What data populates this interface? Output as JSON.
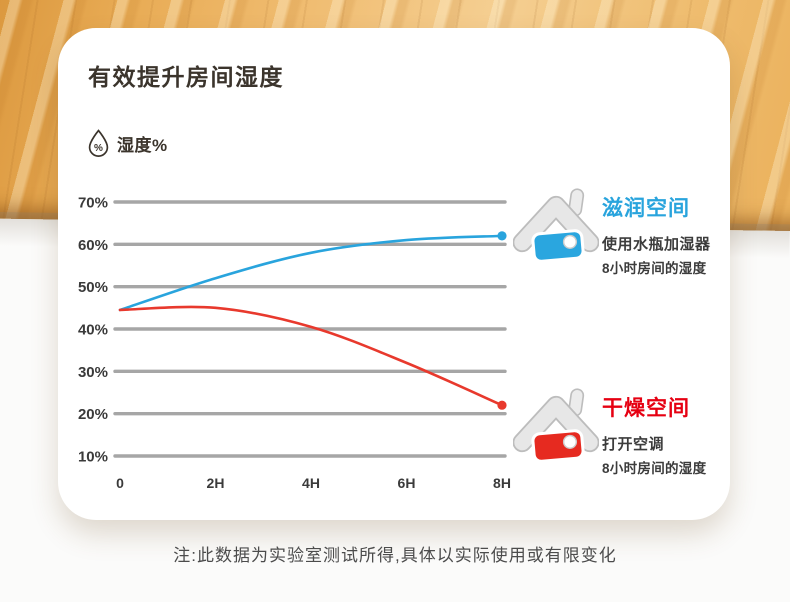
{
  "page": {
    "title": "有效提升房间湿度",
    "unit_label": "湿度%",
    "unit_icon": "water-drop-percent-icon",
    "footnote": "注:此数据为实验室测试所得,具体以实际使用或有限变化"
  },
  "chart_data": {
    "type": "line",
    "title": "有效提升房间湿度",
    "ylabel": "湿度%",
    "xlabel": "",
    "x_labels": [
      "0",
      "2H",
      "4H",
      "6H",
      "8H"
    ],
    "y_labels": [
      "70%",
      "60%",
      "50%",
      "40%",
      "30%",
      "20%",
      "10%"
    ],
    "y_min": 10,
    "y_max": 70,
    "grid": true,
    "legend_position": "right",
    "series": [
      {
        "name": "滋润空间",
        "color": "#29a4dd",
        "values": [
          44.5,
          52,
          58,
          61,
          62
        ],
        "endpoint_dot": true
      },
      {
        "name": "干燥空间",
        "color": "#e8392d",
        "values": [
          44.5,
          45,
          40.5,
          32,
          22
        ],
        "endpoint_dot": true
      }
    ]
  },
  "legend": [
    {
      "icon": "house-icon",
      "title": "滋润空间",
      "title_color": "#29a4dd",
      "house_color": "#2aa6df",
      "desc_line1": "使用水瓶加湿器",
      "desc_line2": "8小时房间的湿度"
    },
    {
      "icon": "house-icon",
      "title": "干燥空间",
      "title_color": "#e60012",
      "house_color": "#e62a20",
      "desc_line1": "打开空调",
      "desc_line2": "8小时房间的湿度"
    }
  ],
  "colors": {
    "grid": "#a6a6a6",
    "axis_text": "#3a3a3a",
    "card_bg": "#ffffff",
    "title_text": "#3b342c"
  }
}
